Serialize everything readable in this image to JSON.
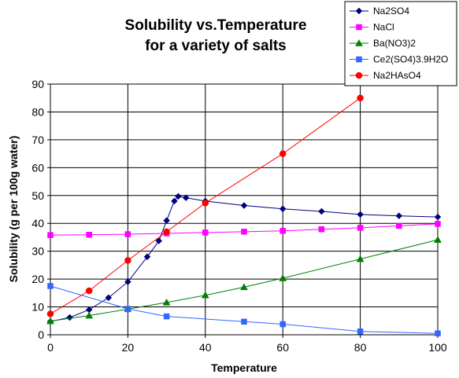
{
  "chart_data": {
    "type": "line",
    "title": [
      "Solubility vs.Temperature",
      "for a variety of salts"
    ],
    "xlabel": "Temperature",
    "ylabel": "Solubility (g per 100g water)",
    "xlim": [
      0,
      100
    ],
    "ylim": [
      0,
      90
    ],
    "x_ticks": [
      "0",
      "20",
      "40",
      "60",
      "80",
      "100"
    ],
    "y_ticks": [
      "0",
      "10",
      "20",
      "30",
      "40",
      "50",
      "60",
      "70",
      "80",
      "90"
    ],
    "grid": true,
    "legend_position": "top-right",
    "series": [
      {
        "name": "Na2SO4",
        "color": "#000080",
        "marker": "diamond",
        "points": [
          [
            0,
            4.8
          ],
          [
            5,
            6.2
          ],
          [
            10,
            9.0
          ],
          [
            15,
            13.3
          ],
          [
            20,
            19.0
          ],
          [
            25,
            28.0
          ],
          [
            28,
            33.7
          ],
          [
            30,
            41.0
          ],
          [
            32,
            48.0
          ],
          [
            33,
            49.7
          ],
          [
            35,
            49.2
          ],
          [
            40,
            48.0
          ],
          [
            50,
            46.4
          ],
          [
            60,
            45.2
          ],
          [
            70,
            44.3
          ],
          [
            80,
            43.2
          ],
          [
            90,
            42.7
          ],
          [
            100,
            42.3
          ]
        ]
      },
      {
        "name": "NaCl",
        "color": "#ff00ff",
        "marker": "square",
        "points": [
          [
            0,
            35.8
          ],
          [
            10,
            35.9
          ],
          [
            20,
            36.1
          ],
          [
            30,
            36.4
          ],
          [
            40,
            36.7
          ],
          [
            50,
            37.0
          ],
          [
            60,
            37.3
          ],
          [
            70,
            37.9
          ],
          [
            80,
            38.4
          ],
          [
            90,
            39.1
          ],
          [
            100,
            39.8
          ]
        ]
      },
      {
        "name": "Ba(NO3)2",
        "color": "#008000",
        "marker": "triangle",
        "points": [
          [
            0,
            4.9
          ],
          [
            10,
            6.9
          ],
          [
            20,
            9.2
          ],
          [
            30,
            11.6
          ],
          [
            40,
            14.2
          ],
          [
            50,
            17.1
          ],
          [
            60,
            20.3
          ],
          [
            80,
            27.2
          ],
          [
            100,
            34.1
          ]
        ]
      },
      {
        "name": "Ce2(SO4)3.9H2O",
        "color": "#3366ff",
        "marker": "square",
        "points": [
          [
            0,
            17.5
          ],
          [
            20,
            9.3
          ],
          [
            30,
            6.6
          ],
          [
            50,
            4.7
          ],
          [
            60,
            3.8
          ],
          [
            80,
            1.2
          ],
          [
            100,
            0.5
          ]
        ]
      },
      {
        "name": "Na2HAsO4",
        "color": "#ff0000",
        "marker": "circle",
        "points": [
          [
            0,
            7.5
          ],
          [
            10,
            15.8
          ],
          [
            20,
            26.7
          ],
          [
            30,
            37.0
          ],
          [
            40,
            47.3
          ],
          [
            60,
            65.0
          ],
          [
            80,
            85.0
          ]
        ]
      }
    ]
  }
}
